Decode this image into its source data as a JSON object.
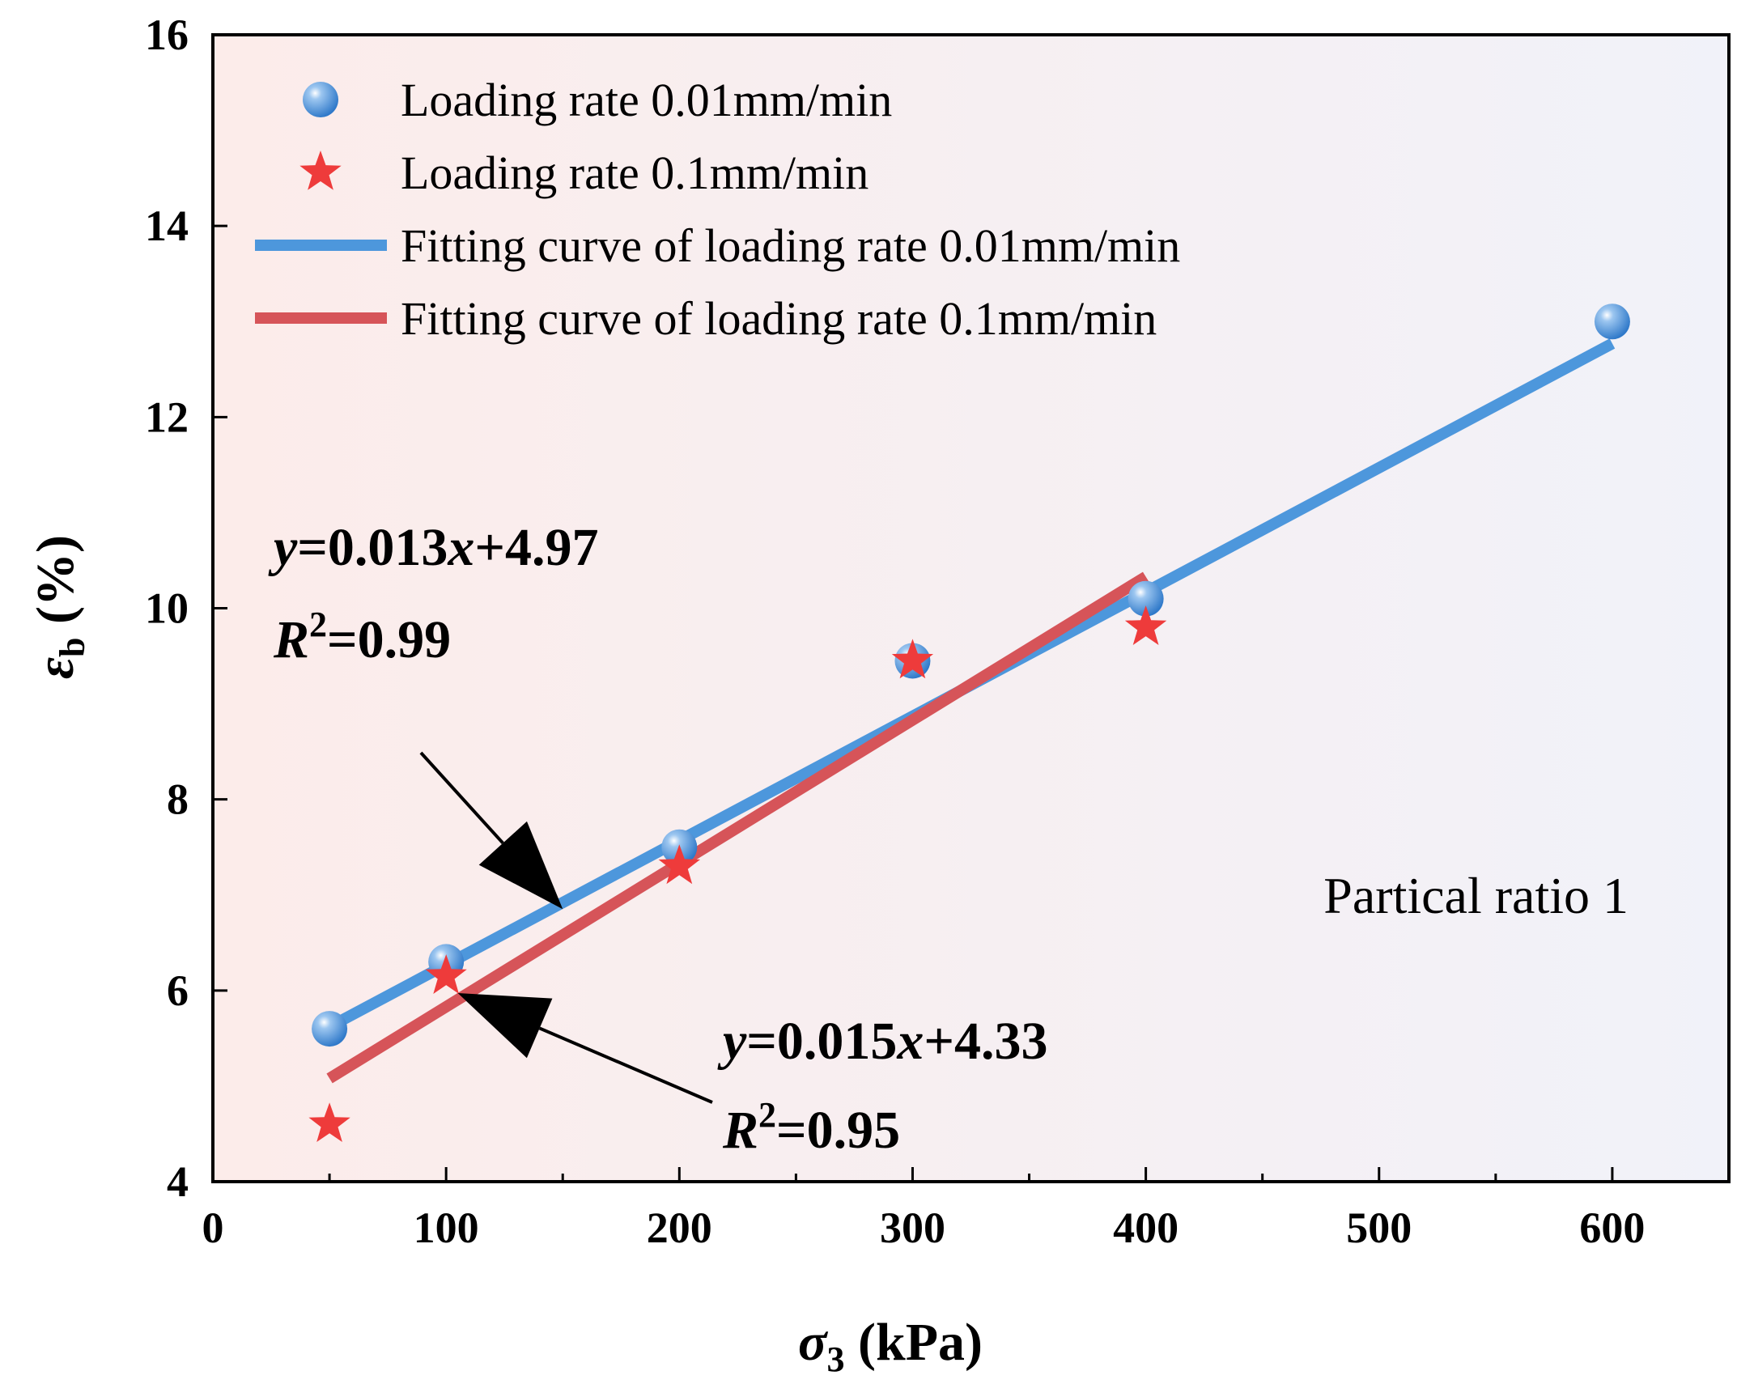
{
  "chart_data": {
    "type": "scatter",
    "xlabel": {
      "symbol": "σ",
      "subscript": "3",
      "unit": "(kPa)"
    },
    "ylabel": {
      "symbol": "ε",
      "subscript": "b",
      "unit": "(%)"
    },
    "xlim": [
      0,
      650
    ],
    "ylim": [
      4,
      16
    ],
    "x_ticks": [
      0,
      100,
      200,
      300,
      400,
      500,
      600
    ],
    "y_ticks": [
      4,
      6,
      8,
      10,
      12,
      14,
      16
    ],
    "grid": false,
    "legend_position": "top-left",
    "series": [
      {
        "name": "Loading rate 0.01mm/min",
        "marker": "circle",
        "color": "#4a90d9",
        "x": [
          50,
          100,
          200,
          300,
          400,
          600
        ],
        "y": [
          5.6,
          6.3,
          7.5,
          9.45,
          10.1,
          13.0
        ]
      },
      {
        "name": "Loading rate 0.1mm/min",
        "marker": "star",
        "color": "#ee3b3b",
        "x": [
          50,
          100,
          200,
          300,
          400
        ],
        "y": [
          4.6,
          6.15,
          7.3,
          9.45,
          9.8
        ]
      }
    ],
    "fits": [
      {
        "name": "Fitting curve of loading rate 0.01mm/min",
        "color": "#4d97dc",
        "slope": 0.013,
        "intercept": 4.97,
        "x_range": [
          50,
          600
        ],
        "equation": {
          "y": "y",
          "rest": "=0.013",
          "x": "x",
          "tail": "+4.97"
        },
        "r2": {
          "r": "R",
          "sup": "2",
          "value": "=0.99"
        }
      },
      {
        "name": "Fitting curve of loading rate 0.1mm/min",
        "color": "#d65459",
        "slope": 0.015,
        "intercept": 4.33,
        "x_range": [
          50,
          400
        ],
        "equation": {
          "y": "y",
          "rest": "=0.015",
          "x": "x",
          "tail": "+4.33"
        },
        "r2": {
          "r": "R",
          "sup": "2",
          "value": "=0.95"
        }
      }
    ],
    "annotation": "Partical ratio 1"
  }
}
